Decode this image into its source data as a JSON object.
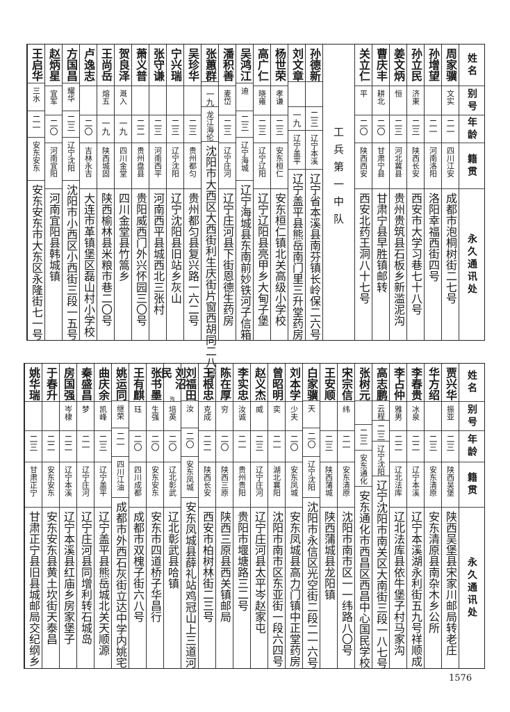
{
  "headers": {
    "name": "姓名",
    "alias": "别号",
    "age": "年龄",
    "native": "籍贯",
    "address": "永久通讯处"
  },
  "top_table": {
    "group_a": [
      {
        "name": "周家骥",
        "alias": "文实",
        "age": "二一",
        "native": "四川江安",
        "address": "成都市泡桐树街二七号"
      },
      {
        "name": "孙增望",
        "alias": "",
        "age": "二一",
        "native": "河南洛阳",
        "address": "洛阳幸福西街四号"
      },
      {
        "name": "孙立民",
        "alias": "济東",
        "age": "二三",
        "native": "陕西长安",
        "address": "西安市大学习巷七十八号"
      },
      {
        "name": "姜文炳",
        "alias": "恒",
        "age": "二三",
        "native": "河北冀县",
        "address": "贵州贵筑县石板乡新滥泥沟"
      },
      {
        "name": "曹庆丰",
        "alias": "耕北",
        "age": "二〇",
        "native": "甘肃宁县",
        "address": "甘肃宁县早胜镇邮转"
      },
      {
        "name": "关立仁",
        "alias": "平",
        "age": "二〇",
        "native": "陕西西安",
        "address": "西安北药王洞八十七号"
      }
    ],
    "section_title": "工兵第一中队",
    "group_b": [
      {
        "name": "孙德新",
        "alias": "",
        "age": "二三",
        "native": "辽宁本溪",
        "address": "辽宁省本溪县南芬镇长岭保二六号"
      },
      {
        "name": "刘文章",
        "alias": "",
        "age": "一九",
        "native": "辽宁盖平",
        "address": "辽宁盖平县熊岳南门里三升堂药房"
      },
      {
        "name": "杨世荣",
        "alias": "孝谦",
        "age": "二三",
        "native": "安东桓仁",
        "address": "安东桓仁镇北关高级小学校"
      },
      {
        "name": "高广仁",
        "alias": "晓雍",
        "age": "二三",
        "native": "辽宁辽阳",
        "address": "辽宁辽阳县亮甲乡大甸子堡"
      },
      {
        "name": "吴鸿江",
        "alias": "迪",
        "age": "二三",
        "native": "辽宁海城",
        "address": "辽宁海城县东南前妙铁河子信箱"
      },
      {
        "name": "潘积善",
        "alias": "麦岱",
        "age": "二三",
        "native": "辽宁庄河",
        "address": "辽宁庄河县下街恩德生药房"
      },
      {
        "name": "张蕙群",
        "alias": "",
        "age": "一九",
        "native": "龙江海伦",
        "address": "沈阳市大西区大西街利生庆街片窗西胡同二八号"
      },
      {
        "name": "吴珍华",
        "alias": "",
        "age": "二三",
        "native": "贵州都匀",
        "address": "贵州都匀县复兴路一六二号"
      },
      {
        "name": "宁兴瑞",
        "alias": "",
        "age": "二三",
        "native": "辽宁沈阳",
        "address": "辽宁沈阳县旧站乡灰山"
      },
      {
        "name": "张守谦",
        "alias": "",
        "age": "二三",
        "native": "河南西平",
        "address": "河南西平县城西北三张村"
      },
      {
        "name": "萧义普",
        "alias": "",
        "age": "二二",
        "native": "贵州盘县",
        "address": "贵阳威西门外兴怀园三〇号"
      },
      {
        "name": "贺良泽",
        "alias": "溉入",
        "age": "一九",
        "native": "四川金堂",
        "address": "四川金堂县竹篙乡"
      },
      {
        "name": "王尚岳",
        "alias": "熔五",
        "age": "一九",
        "native": "陕西城固",
        "address": "陕西榆林县米粮市巷二〇号"
      },
      {
        "name": "卢逸志",
        "alias": "",
        "age": "二〇",
        "native": "吉林永吉",
        "address": "大连市革镇堡区磊山村小学校"
      },
      {
        "name": "方国昌",
        "alias": "耀华",
        "age": "二三",
        "native": "辽宁沈阳",
        "address": "沈阳市小西区小西街三段一五号"
      },
      {
        "name": "赵炳星",
        "alias": "宜军",
        "age": "二〇",
        "native": "河南宜阳",
        "address": "河南宜阳县韩城镇"
      },
      {
        "name": "王启华",
        "alias": "三水",
        "age": "二一",
        "native": "安东安东",
        "address": "安东安东市大东区永隆街七一号"
      }
    ]
  },
  "bottom_table": [
    {
      "name": "贾兴华",
      "alias": "振亚",
      "age": "二三",
      "native": "陕西吴堡",
      "address": "陕西吴堡县宋家川邮局转老庄"
    },
    {
      "name": "华方绍",
      "alias": "",
      "age": "二三",
      "native": "安东清原",
      "address": "安东清原县南杂木乡公所"
    },
    {
      "name": "李春贵",
      "alias": "冰泉",
      "age": "二二",
      "native": "辽宁本溪",
      "address": "辽宁本溪湖永利街五九号祥顺成"
    },
    {
      "name": "李占仲",
      "alias": "雅男",
      "age": "二二",
      "native": "辽北法库",
      "address": "辽北法库县依牛堡子村马家沟"
    },
    {
      "name": "高志鹏",
      "alias": "云程",
      "age": "二三",
      "native": "辽宁沈阳",
      "address": "辽宁沈阳市南关区大南街三段一八七号"
    },
    {
      "name": "张树元",
      "alias": "",
      "age": "二三",
      "native": "安东通化",
      "address": "安东通化市西昌区西昌中心国民学校"
    },
    {
      "name": "宋宗信",
      "alias": "纬",
      "age": "二一",
      "native": "安东清原",
      "address": "沈阳市南市区一一纬路八〇号"
    },
    {
      "name": "王安顺",
      "alias": "",
      "age": "二三",
      "native": "陕西蒲城",
      "address": "陕西蒲城县龙阳镇"
    },
    {
      "name": "白家骥",
      "alias": "天",
      "age": "二〇",
      "native": "辽宁沈阳",
      "address": "沈阳市永信区光空街二段二一六号"
    },
    {
      "name": "刘本学",
      "alias": "少夫",
      "age": "二〇",
      "native": "安东凤城",
      "address": "安东凤城县高力门镇中正堂药房"
    },
    {
      "name": "曾昭明",
      "alias": "奕",
      "age": "二一",
      "native": "湖北襄阳",
      "address": "沈阳市南市区东亚街一段六四号"
    },
    {
      "name": "赵义杰",
      "alias": "威",
      "age": "二三",
      "native": "辽宁庄河",
      "address": "辽宁庄河县太平岑赵家屯"
    },
    {
      "name": "李实忠",
      "alias": "汝诚",
      "age": "二一",
      "native": "贵州贵阳",
      "address": "贵阳市堰塘路三二号"
    },
    {
      "name": "陈在厚",
      "alias": "穷",
      "age": "二〇",
      "native": "陕西三原",
      "address": "陕西三原县西关镇邮局"
    },
    {
      "name": "王根忠",
      "alias": "克成",
      "age": "二二",
      "native": "陕西长安",
      "address": "西安市柏树林街二三号"
    },
    {
      "name": "刘福田",
      "alias": "汝",
      "age": "二〇",
      "native": "安东凤城",
      "address": "安东凤城县薛礼站鸡冠山上三道河"
    },
    {
      "name": "刘沼民",
      "note": "殉",
      "alias": "培英",
      "age": "二〇",
      "native": "辽北彰武",
      "address": "辽北彰武县哈镇"
    },
    {
      "name": "张书墨",
      "alias": "生强",
      "age": "二〇",
      "native": "安东安东",
      "address": "安东市四道桥子华昌行"
    },
    {
      "name": "王有麒",
      "alias": "珏",
      "age": "二〇",
      "native": "四川成都",
      "address": "成都市双槐子街六八号"
    },
    {
      "name": "姚运同",
      "alias": "继荣",
      "age": "二一",
      "native": "四川江油",
      "address": "成都市外西石灰街立达中学内姚宅"
    },
    {
      "name": "曲庆余",
      "alias": "凯峰",
      "age": "二三",
      "native": "辽宁盖平",
      "address": "辽宁盖平县熊岳城北关天顺源"
    },
    {
      "name": "秦盛昌",
      "alias": "梦",
      "age": "二一",
      "native": "辽宁庄河",
      "address": "辽宁庄河县同增利转石城岛"
    },
    {
      "name": "房国强",
      "alias": "岑棣",
      "age": "二二",
      "native": "辽宁本溪",
      "address": "辽宁本溪县红庙乡房家堡子"
    },
    {
      "name": "于春升",
      "alias": "",
      "age": "二二",
      "native": "安东安东",
      "address": "安东安东县黄土坎街天泰昌"
    },
    {
      "name": "姚华瑞",
      "alias": "",
      "age": "二三",
      "native": "甘肃正宁",
      "address": "甘肃正宁县旧县城邮局交纪纲乡"
    }
  ],
  "page_number": "1576"
}
